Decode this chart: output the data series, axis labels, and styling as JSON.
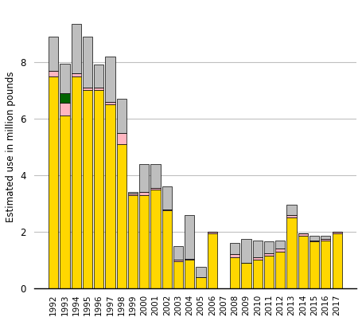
{
  "years": [
    "1992",
    "1993",
    "1994",
    "1995",
    "1996",
    "1997",
    "1998",
    "1999",
    "2000",
    "2001",
    "2002",
    "2003",
    "2004",
    "2005",
    "2006",
    "2007",
    "2008",
    "2009",
    "2010",
    "2011",
    "2012",
    "2013",
    "2014",
    "2015",
    "2016",
    "2017"
  ],
  "corn": [
    7.5,
    6.1,
    7.5,
    7.0,
    7.0,
    6.5,
    5.1,
    3.3,
    3.3,
    3.5,
    2.75,
    0.95,
    1.0,
    0.4,
    1.95,
    0.0,
    1.1,
    0.9,
    1.0,
    1.15,
    1.3,
    2.5,
    1.85,
    1.65,
    1.7,
    1.95
  ],
  "sorghum": [
    0.2,
    0.45,
    0.1,
    0.1,
    0.1,
    0.1,
    0.4,
    0.05,
    0.1,
    0.05,
    0.05,
    0.05,
    0.05,
    0.0,
    0.05,
    0.0,
    0.1,
    0.0,
    0.1,
    0.1,
    0.1,
    0.1,
    0.1,
    0.05,
    0.05,
    0.05
  ],
  "sugarbeets": [
    0.0,
    0.35,
    0.0,
    0.0,
    0.0,
    0.0,
    0.0,
    0.0,
    0.0,
    0.0,
    0.0,
    0.0,
    0.0,
    0.0,
    0.0,
    0.0,
    0.0,
    0.0,
    0.0,
    0.0,
    0.0,
    0.0,
    0.0,
    0.0,
    0.0,
    0.0
  ],
  "other": [
    1.2,
    1.05,
    1.75,
    1.8,
    0.8,
    1.6,
    1.2,
    0.05,
    1.0,
    0.85,
    0.8,
    0.5,
    1.55,
    0.35,
    0.0,
    0.0,
    0.4,
    0.85,
    0.6,
    0.4,
    0.3,
    0.35,
    0.0,
    0.15,
    0.1,
    0.0
  ],
  "colors": {
    "corn": "#FFD700",
    "sorghum": "#FFB6C1",
    "sugarbeets": "#006400",
    "other": "#BEBEBE"
  },
  "ylabel": "Estimated use in million pounds",
  "ylim": [
    0,
    10
  ],
  "yticks": [
    0,
    2,
    4,
    6,
    8
  ],
  "grid_color": "#C0C0C0"
}
